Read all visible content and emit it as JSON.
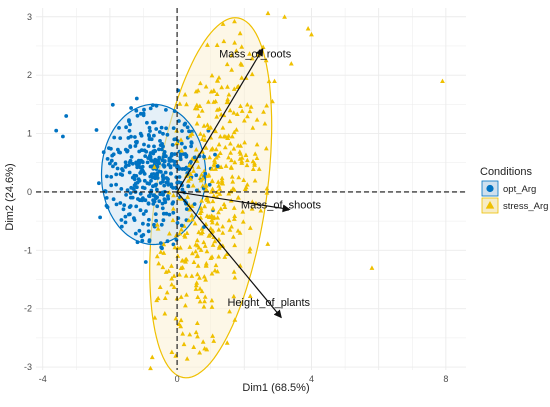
{
  "chart_data": {
    "type": "scatter",
    "subtype": "PCA biplot",
    "title": "",
    "xlabel": "Dim1 (68.5%)",
    "ylabel": "Dim2 (24.6%)",
    "xlim": [
      -4.2,
      8.6
    ],
    "ylim": [
      -3.05,
      3.15
    ],
    "x_ticks": [
      -4,
      0,
      4,
      8
    ],
    "y_ticks": [
      -3,
      -2,
      -1,
      0,
      1,
      2,
      3
    ],
    "grid": true,
    "legend": {
      "title": "Conditions",
      "placement": "right",
      "entries": [
        {
          "name": "opt_Arg",
          "color": "#0073C2",
          "marker": "circle"
        },
        {
          "name": "stress_Arg",
          "color": "#EFC000",
          "marker": "triangle"
        }
      ]
    },
    "series": [
      {
        "name": "opt_Arg",
        "color": "#0073C2",
        "marker": "circle",
        "ellipse": {
          "center": [
            -0.7,
            0.3
          ],
          "semi_axes": [
            1.55,
            1.2
          ],
          "angle_deg": 0
        },
        "extra_points": [
          [
            -3.3,
            1.3
          ],
          [
            -3.4,
            0.95
          ],
          [
            -3.6,
            1.05
          ],
          [
            -1.2,
            1.6
          ],
          [
            0.8,
            -0.6
          ],
          [
            1.0,
            0.4
          ]
        ],
        "n_points": 400
      },
      {
        "name": "stress_Arg",
        "color": "#EFC000",
        "marker": "triangle",
        "ellipse": {
          "center": [
            1.0,
            -0.1
          ],
          "semi_axes": [
            3.2,
            1.6
          ],
          "angle_deg": 72
        },
        "extra_points": [
          [
            7.9,
            1.9
          ],
          [
            3.2,
            3.0
          ],
          [
            3.9,
            2.8
          ],
          [
            4.0,
            2.7
          ],
          [
            5.8,
            -1.3
          ],
          [
            3.4,
            2.2
          ],
          [
            2.9,
            1.9
          ]
        ],
        "n_points": 430
      }
    ],
    "loadings": [
      {
        "label": "Mass_of_roots",
        "x": 2.55,
        "y": 2.45
      },
      {
        "label": "Mass_of_shoots",
        "x": 3.35,
        "y": -0.3
      },
      {
        "label": "Height_of_plants",
        "x": 3.1,
        "y": -2.15
      }
    ]
  }
}
